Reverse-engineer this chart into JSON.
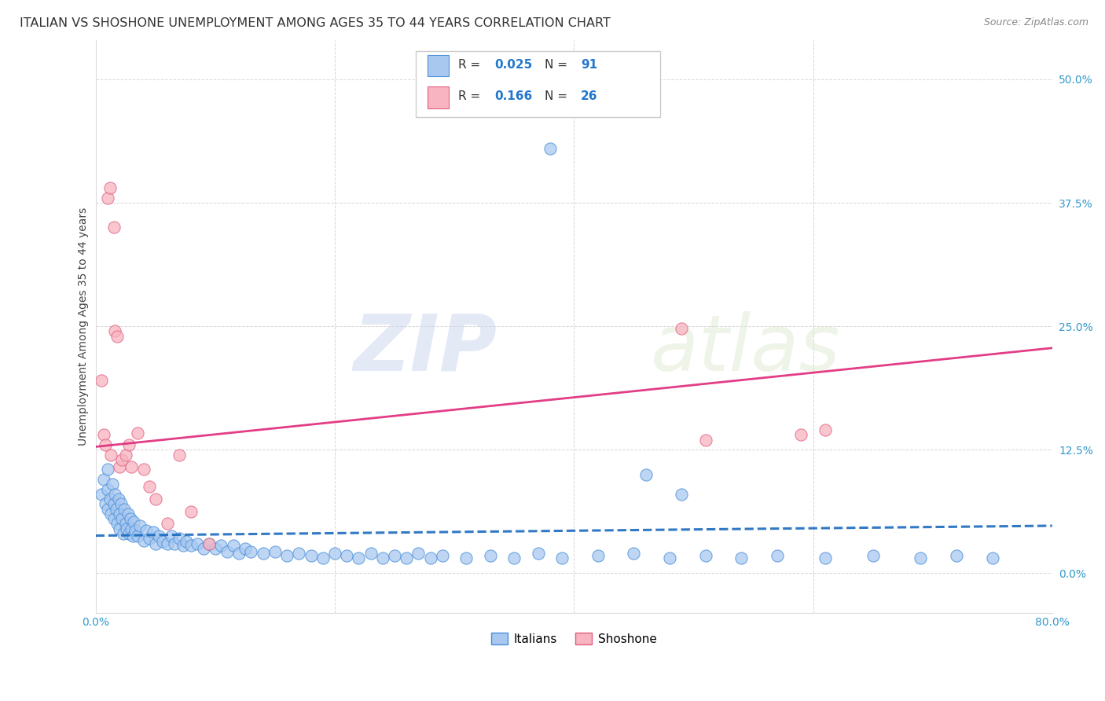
{
  "title": "ITALIAN VS SHOSHONE UNEMPLOYMENT AMONG AGES 35 TO 44 YEARS CORRELATION CHART",
  "source": "Source: ZipAtlas.com",
  "ylabel": "Unemployment Among Ages 35 to 44 years",
  "ytick_labels": [
    "0.0%",
    "12.5%",
    "25.0%",
    "37.5%",
    "50.0%"
  ],
  "ytick_values": [
    0.0,
    0.125,
    0.25,
    0.375,
    0.5
  ],
  "xlim": [
    0.0,
    0.8
  ],
  "ylim": [
    -0.04,
    0.54
  ],
  "italian_R": "0.025",
  "italian_N": "91",
  "shoshone_R": "0.166",
  "shoshone_N": "26",
  "italian_color": "#a8c8f0",
  "italian_edge_color": "#4a90d9",
  "italian_line_color": "#1a6abf",
  "shoshone_color": "#f8b4c0",
  "shoshone_edge_color": "#e06080",
  "shoshone_line_color": "#e0287a",
  "watermark_zip": "ZIP",
  "watermark_atlas": "atlas",
  "background_color": "#ffffff",
  "grid_color": "#cccccc",
  "title_fontsize": 11.5,
  "label_fontsize": 10,
  "tick_fontsize": 10,
  "legend_label_italian": "Italians",
  "legend_label_shoshone": "Shoshone",
  "italian_scatter_x": [
    0.005,
    0.007,
    0.008,
    0.01,
    0.01,
    0.01,
    0.012,
    0.013,
    0.014,
    0.015,
    0.015,
    0.016,
    0.017,
    0.018,
    0.019,
    0.02,
    0.02,
    0.021,
    0.022,
    0.023,
    0.024,
    0.025,
    0.026,
    0.027,
    0.028,
    0.029,
    0.03,
    0.031,
    0.032,
    0.033,
    0.035,
    0.037,
    0.04,
    0.042,
    0.045,
    0.048,
    0.05,
    0.053,
    0.056,
    0.06,
    0.063,
    0.066,
    0.07,
    0.073,
    0.076,
    0.08,
    0.085,
    0.09,
    0.095,
    0.1,
    0.105,
    0.11,
    0.115,
    0.12,
    0.125,
    0.13,
    0.14,
    0.15,
    0.16,
    0.17,
    0.18,
    0.19,
    0.2,
    0.21,
    0.22,
    0.23,
    0.24,
    0.25,
    0.26,
    0.27,
    0.28,
    0.29,
    0.31,
    0.33,
    0.35,
    0.37,
    0.39,
    0.42,
    0.45,
    0.48,
    0.51,
    0.54,
    0.57,
    0.61,
    0.65,
    0.69,
    0.72,
    0.75,
    0.46,
    0.49,
    0.38
  ],
  "italian_scatter_y": [
    0.08,
    0.095,
    0.07,
    0.085,
    0.065,
    0.105,
    0.075,
    0.06,
    0.09,
    0.07,
    0.055,
    0.08,
    0.065,
    0.05,
    0.075,
    0.06,
    0.045,
    0.07,
    0.055,
    0.04,
    0.065,
    0.05,
    0.045,
    0.06,
    0.04,
    0.055,
    0.045,
    0.038,
    0.052,
    0.043,
    0.038,
    0.048,
    0.033,
    0.043,
    0.035,
    0.042,
    0.03,
    0.038,
    0.032,
    0.03,
    0.038,
    0.03,
    0.035,
    0.028,
    0.032,
    0.028,
    0.03,
    0.025,
    0.03,
    0.025,
    0.028,
    0.022,
    0.028,
    0.02,
    0.025,
    0.022,
    0.02,
    0.022,
    0.018,
    0.02,
    0.018,
    0.015,
    0.02,
    0.018,
    0.015,
    0.02,
    0.015,
    0.018,
    0.015,
    0.02,
    0.015,
    0.018,
    0.015,
    0.018,
    0.015,
    0.02,
    0.015,
    0.018,
    0.02,
    0.015,
    0.018,
    0.015,
    0.018,
    0.015,
    0.018,
    0.015,
    0.018,
    0.015,
    0.1,
    0.08,
    0.43
  ],
  "shoshone_scatter_x": [
    0.005,
    0.007,
    0.008,
    0.01,
    0.012,
    0.013,
    0.015,
    0.016,
    0.018,
    0.02,
    0.022,
    0.025,
    0.028,
    0.03,
    0.035,
    0.04,
    0.045,
    0.05,
    0.06,
    0.07,
    0.08,
    0.095,
    0.49,
    0.51,
    0.59,
    0.61
  ],
  "shoshone_scatter_y": [
    0.195,
    0.14,
    0.13,
    0.38,
    0.39,
    0.12,
    0.35,
    0.245,
    0.24,
    0.108,
    0.115,
    0.12,
    0.13,
    0.108,
    0.142,
    0.105,
    0.088,
    0.075,
    0.05,
    0.12,
    0.062,
    0.03,
    0.248,
    0.135,
    0.14,
    0.145
  ],
  "italian_line_x": [
    0.0,
    0.8
  ],
  "italian_line_y": [
    0.038,
    0.048
  ],
  "shoshone_line_x": [
    0.0,
    0.8
  ],
  "shoshone_line_y": [
    0.128,
    0.228
  ]
}
